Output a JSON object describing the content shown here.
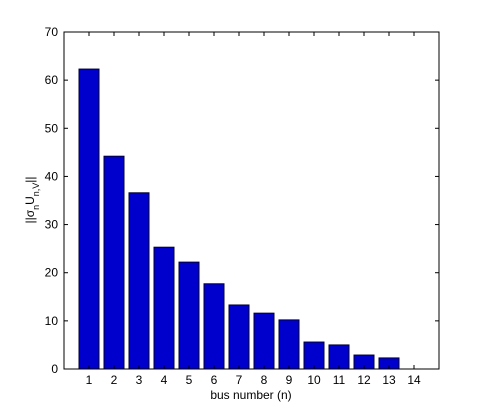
{
  "chart_data": {
    "type": "bar",
    "x_label": "bus number (n)",
    "y_label": [
      "||σ",
      "n",
      "U",
      "n,V",
      "||"
    ],
    "x": [
      1,
      2,
      3,
      4,
      5,
      6,
      7,
      8,
      9,
      10,
      11,
      12,
      13,
      14
    ],
    "values": [
      62.3,
      44.2,
      36.6,
      25.3,
      22.2,
      17.7,
      13.3,
      11.6,
      10.2,
      5.6,
      5.0,
      2.9,
      2.3,
      0
    ],
    "color": "#0000cc",
    "xlim": [
      0,
      15
    ],
    "xticks": [
      1,
      2,
      3,
      4,
      5,
      6,
      7,
      8,
      9,
      10,
      11,
      12,
      13,
      14
    ],
    "ylim": [
      0,
      70
    ],
    "yticks": [
      0,
      10,
      20,
      30,
      40,
      50,
      60,
      70
    ]
  }
}
